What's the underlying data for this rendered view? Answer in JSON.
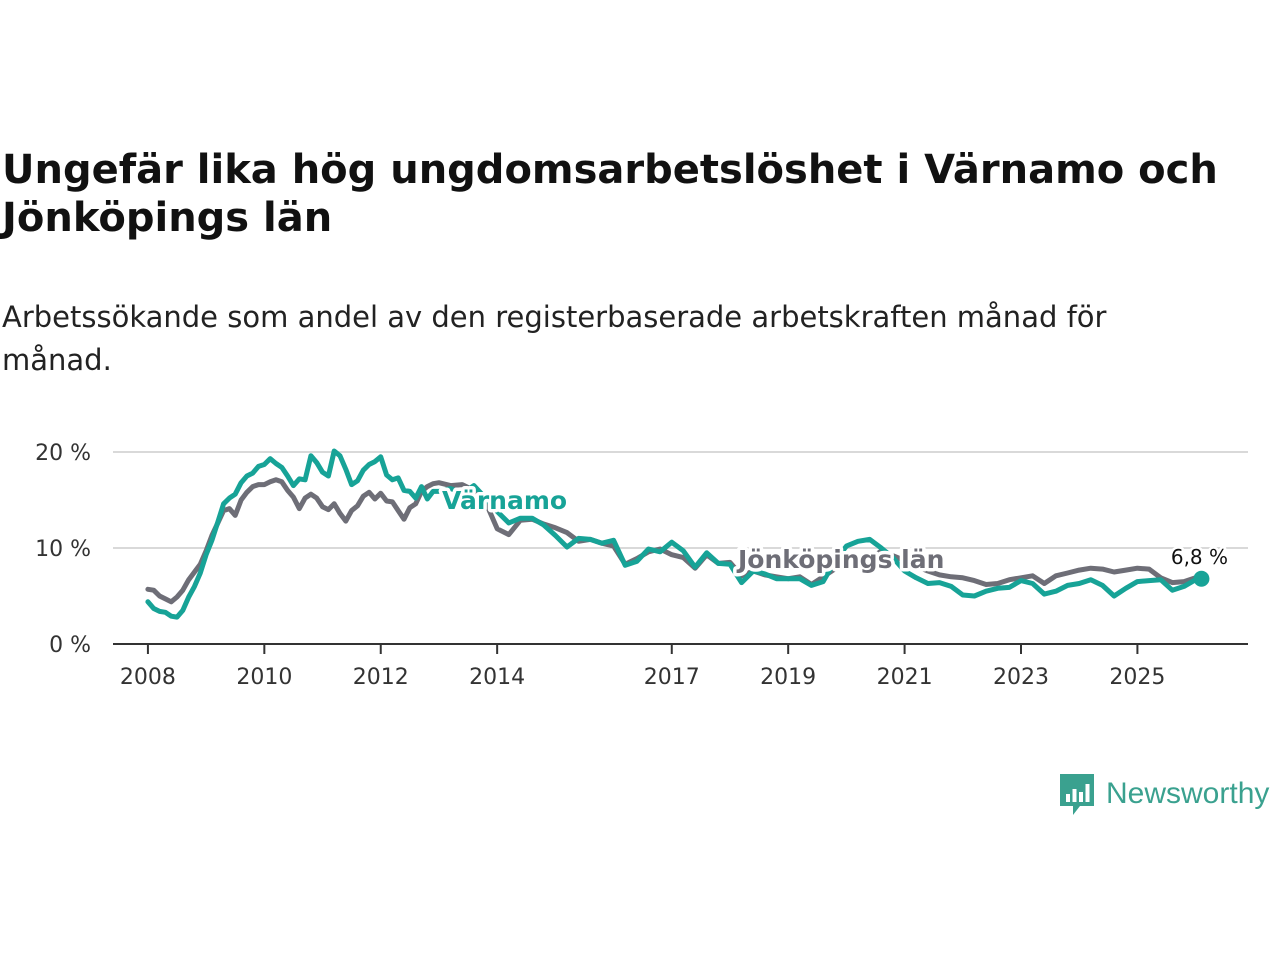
{
  "title": "Ungefär lika hög ungdomsarbetslöshet i Värnamo och Jönköpings län",
  "subtitle": "Arbetssökande som andel av den registerbaserade arbetskraften månad för månad.",
  "brand": {
    "name": "Newsworthy"
  },
  "colors": {
    "varnamo": "#17a397",
    "jonkoping": "#6e6e77",
    "grid": "#d9d9d9",
    "axis": "#333333"
  },
  "chart_data": {
    "type": "line",
    "title": "Ungefär lika hög ungdomsarbetslöshet i Värnamo och Jönköpings län",
    "xlabel": "",
    "ylabel": "",
    "xlim": [
      2007.4,
      2026.9
    ],
    "ylim": [
      0,
      20
    ],
    "x_ticks": [
      2008,
      2010,
      2012,
      2014,
      2017,
      2019,
      2021,
      2023,
      2025
    ],
    "x_tick_labels": [
      "2008",
      "2010",
      "2012",
      "2014",
      "2017",
      "2019",
      "2021",
      "2023",
      "2025"
    ],
    "y_ticks": [
      0,
      10,
      20
    ],
    "y_tick_labels": [
      "0 %",
      "10 %",
      "20 %"
    ],
    "grid": true,
    "end_label": "6,8 %",
    "end_value": {
      "x": 2026.1,
      "y": 6.8
    },
    "series": [
      {
        "name": "Jönköpings län",
        "label": "Jönköpings län",
        "color": "#6e6e77",
        "x": [
          2008.0,
          2008.1,
          2008.2,
          2008.3,
          2008.4,
          2008.5,
          2008.6,
          2008.7,
          2008.8,
          2008.9,
          2009.0,
          2009.1,
          2009.2,
          2009.3,
          2009.4,
          2009.5,
          2009.6,
          2009.7,
          2009.8,
          2009.9,
          2010.0,
          2010.1,
          2010.2,
          2010.3,
          2010.4,
          2010.5,
          2010.6,
          2010.7,
          2010.8,
          2010.9,
          2011.0,
          2011.1,
          2011.2,
          2011.3,
          2011.4,
          2011.5,
          2011.6,
          2011.7,
          2011.8,
          2011.9,
          2012.0,
          2012.1,
          2012.2,
          2012.3,
          2012.4,
          2012.5,
          2012.6,
          2012.7,
          2012.8,
          2012.9,
          2013.0,
          2013.2,
          2013.4,
          2013.6,
          2013.8,
          2014.0,
          2014.2,
          2014.4,
          2014.6,
          2014.8,
          2015.0,
          2015.2,
          2015.4,
          2015.6,
          2015.8,
          2016.0,
          2016.2,
          2016.4,
          2016.6,
          2016.8,
          2017.0,
          2017.2,
          2017.4,
          2017.6,
          2017.8,
          2018.0,
          2018.2,
          2018.4,
          2018.6,
          2018.8,
          2019.0,
          2019.2,
          2019.4,
          2019.6,
          2019.8,
          2020.0,
          2020.2,
          2020.4,
          2020.6,
          2020.8,
          2021.0,
          2021.2,
          2021.4,
          2021.6,
          2021.8,
          2022.0,
          2022.2,
          2022.4,
          2022.6,
          2022.8,
          2023.0,
          2023.2,
          2023.4,
          2023.6,
          2023.8,
          2024.0,
          2024.2,
          2024.4,
          2024.6,
          2024.8,
          2025.0,
          2025.2,
          2025.4,
          2025.6,
          2025.8,
          2026.0,
          2026.1
        ],
        "values": [
          5.7,
          5.6,
          5.0,
          4.7,
          4.4,
          4.9,
          5.6,
          6.7,
          7.5,
          8.3,
          9.7,
          11.3,
          12.6,
          13.9,
          14.1,
          13.4,
          15.0,
          15.8,
          16.4,
          16.6,
          16.6,
          16.9,
          17.1,
          16.9,
          16.0,
          15.3,
          14.1,
          15.2,
          15.6,
          15.2,
          14.3,
          14.0,
          14.6,
          13.6,
          12.8,
          13.9,
          14.4,
          15.4,
          15.8,
          15.1,
          15.7,
          14.9,
          14.8,
          13.9,
          13.0,
          14.2,
          14.6,
          15.9,
          16.4,
          16.7,
          16.8,
          16.5,
          16.6,
          16.0,
          14.8,
          12.0,
          11.4,
          12.9,
          13.0,
          12.5,
          12.1,
          11.6,
          10.7,
          10.9,
          10.5,
          10.2,
          8.3,
          8.9,
          9.6,
          9.9,
          9.3,
          9.0,
          7.9,
          9.3,
          8.4,
          8.5,
          7.1,
          7.6,
          7.2,
          7.0,
          6.8,
          7.0,
          6.2,
          7.0,
          7.8,
          8.1,
          8.4,
          8.8,
          9.7,
          9.2,
          8.7,
          8.1,
          7.6,
          7.2,
          7.0,
          6.9,
          6.6,
          6.2,
          6.3,
          6.7,
          6.9,
          7.1,
          6.3,
          7.1,
          7.4,
          7.7,
          7.9,
          7.8,
          7.5,
          7.7,
          7.9,
          7.8,
          6.9,
          6.4,
          6.5,
          6.9,
          6.8
        ]
      },
      {
        "name": "Värnamo",
        "label": "Värnamo",
        "color": "#17a397",
        "x": [
          2008.0,
          2008.1,
          2008.2,
          2008.3,
          2008.4,
          2008.5,
          2008.6,
          2008.7,
          2008.8,
          2008.9,
          2009.0,
          2009.1,
          2009.2,
          2009.3,
          2009.4,
          2009.5,
          2009.6,
          2009.7,
          2009.8,
          2009.9,
          2010.0,
          2010.1,
          2010.2,
          2010.3,
          2010.4,
          2010.5,
          2010.6,
          2010.7,
          2010.8,
          2010.9,
          2011.0,
          2011.1,
          2011.2,
          2011.3,
          2011.4,
          2011.5,
          2011.6,
          2011.7,
          2011.8,
          2011.9,
          2012.0,
          2012.1,
          2012.2,
          2012.3,
          2012.4,
          2012.5,
          2012.6,
          2012.7,
          2012.8,
          2012.9,
          2013.0,
          2013.2,
          2013.4,
          2013.6,
          2013.8,
          2014.0,
          2014.2,
          2014.4,
          2014.6,
          2014.8,
          2015.0,
          2015.2,
          2015.4,
          2015.6,
          2015.8,
          2016.0,
          2016.2,
          2016.4,
          2016.6,
          2016.8,
          2017.0,
          2017.2,
          2017.4,
          2017.6,
          2017.8,
          2018.0,
          2018.2,
          2018.4,
          2018.6,
          2018.8,
          2019.0,
          2019.2,
          2019.4,
          2019.6,
          2019.8,
          2020.0,
          2020.2,
          2020.4,
          2020.6,
          2020.8,
          2021.0,
          2021.2,
          2021.4,
          2021.6,
          2021.8,
          2022.0,
          2022.2,
          2022.4,
          2022.6,
          2022.8,
          2023.0,
          2023.2,
          2023.4,
          2023.6,
          2023.8,
          2024.0,
          2024.2,
          2024.4,
          2024.6,
          2024.8,
          2025.0,
          2025.2,
          2025.4,
          2025.6,
          2025.8,
          2026.0,
          2026.1
        ],
        "values": [
          4.4,
          3.7,
          3.4,
          3.3,
          2.9,
          2.8,
          3.5,
          4.9,
          6.0,
          7.4,
          9.3,
          10.8,
          12.7,
          14.6,
          15.2,
          15.6,
          16.8,
          17.5,
          17.8,
          18.5,
          18.7,
          19.3,
          18.8,
          18.4,
          17.5,
          16.5,
          17.2,
          17.1,
          19.6,
          18.9,
          17.9,
          17.5,
          20.1,
          19.6,
          18.2,
          16.6,
          17.0,
          18.1,
          18.7,
          19.0,
          19.5,
          17.6,
          17.1,
          17.3,
          16.0,
          15.9,
          15.2,
          16.4,
          15.1,
          15.9,
          15.9,
          16.2,
          15.7,
          16.5,
          15.2,
          13.8,
          12.6,
          13.1,
          13.1,
          12.4,
          11.3,
          10.1,
          11.0,
          10.9,
          10.5,
          10.8,
          8.2,
          8.6,
          9.9,
          9.6,
          10.6,
          9.7,
          8.0,
          9.5,
          8.4,
          8.3,
          6.4,
          7.6,
          7.3,
          6.8,
          6.8,
          6.8,
          6.1,
          6.5,
          8.6,
          10.2,
          10.7,
          10.9,
          10.0,
          9.0,
          7.6,
          6.9,
          6.3,
          6.4,
          6.0,
          5.1,
          5.0,
          5.5,
          5.8,
          5.9,
          6.6,
          6.3,
          5.2,
          5.5,
          6.1,
          6.3,
          6.7,
          6.1,
          5.0,
          5.8,
          6.5,
          6.6,
          6.7,
          5.6,
          6.0,
          6.7,
          6.8
        ]
      }
    ]
  }
}
